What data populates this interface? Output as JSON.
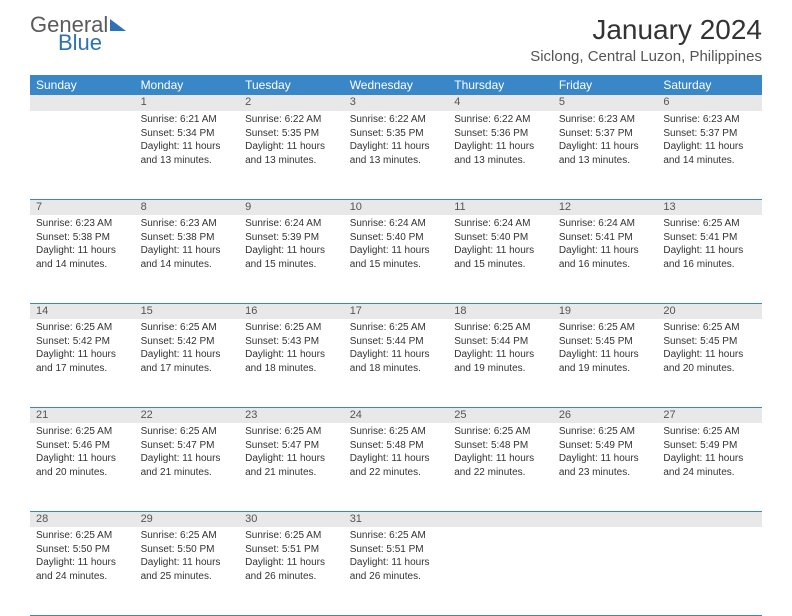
{
  "brand": {
    "part1": "General",
    "part2": "Blue"
  },
  "title": "January 2024",
  "location": "Siclong, Central Luzon, Philippines",
  "colors": {
    "header_bg": "#3a87c8",
    "header_text": "#ffffff",
    "daynum_bg": "#e8e8e8",
    "border": "#3a87c8",
    "text": "#333333",
    "brand_gray": "#5b5b5b",
    "brand_blue": "#2d72b5"
  },
  "day_headers": [
    "Sunday",
    "Monday",
    "Tuesday",
    "Wednesday",
    "Thursday",
    "Friday",
    "Saturday"
  ],
  "weeks": [
    [
      {
        "n": "",
        "sr": "",
        "ss": "",
        "dl": ""
      },
      {
        "n": "1",
        "sr": "Sunrise: 6:21 AM",
        "ss": "Sunset: 5:34 PM",
        "dl": "Daylight: 11 hours and 13 minutes."
      },
      {
        "n": "2",
        "sr": "Sunrise: 6:22 AM",
        "ss": "Sunset: 5:35 PM",
        "dl": "Daylight: 11 hours and 13 minutes."
      },
      {
        "n": "3",
        "sr": "Sunrise: 6:22 AM",
        "ss": "Sunset: 5:35 PM",
        "dl": "Daylight: 11 hours and 13 minutes."
      },
      {
        "n": "4",
        "sr": "Sunrise: 6:22 AM",
        "ss": "Sunset: 5:36 PM",
        "dl": "Daylight: 11 hours and 13 minutes."
      },
      {
        "n": "5",
        "sr": "Sunrise: 6:23 AM",
        "ss": "Sunset: 5:37 PM",
        "dl": "Daylight: 11 hours and 13 minutes."
      },
      {
        "n": "6",
        "sr": "Sunrise: 6:23 AM",
        "ss": "Sunset: 5:37 PM",
        "dl": "Daylight: 11 hours and 14 minutes."
      }
    ],
    [
      {
        "n": "7",
        "sr": "Sunrise: 6:23 AM",
        "ss": "Sunset: 5:38 PM",
        "dl": "Daylight: 11 hours and 14 minutes."
      },
      {
        "n": "8",
        "sr": "Sunrise: 6:23 AM",
        "ss": "Sunset: 5:38 PM",
        "dl": "Daylight: 11 hours and 14 minutes."
      },
      {
        "n": "9",
        "sr": "Sunrise: 6:24 AM",
        "ss": "Sunset: 5:39 PM",
        "dl": "Daylight: 11 hours and 15 minutes."
      },
      {
        "n": "10",
        "sr": "Sunrise: 6:24 AM",
        "ss": "Sunset: 5:40 PM",
        "dl": "Daylight: 11 hours and 15 minutes."
      },
      {
        "n": "11",
        "sr": "Sunrise: 6:24 AM",
        "ss": "Sunset: 5:40 PM",
        "dl": "Daylight: 11 hours and 15 minutes."
      },
      {
        "n": "12",
        "sr": "Sunrise: 6:24 AM",
        "ss": "Sunset: 5:41 PM",
        "dl": "Daylight: 11 hours and 16 minutes."
      },
      {
        "n": "13",
        "sr": "Sunrise: 6:25 AM",
        "ss": "Sunset: 5:41 PM",
        "dl": "Daylight: 11 hours and 16 minutes."
      }
    ],
    [
      {
        "n": "14",
        "sr": "Sunrise: 6:25 AM",
        "ss": "Sunset: 5:42 PM",
        "dl": "Daylight: 11 hours and 17 minutes."
      },
      {
        "n": "15",
        "sr": "Sunrise: 6:25 AM",
        "ss": "Sunset: 5:42 PM",
        "dl": "Daylight: 11 hours and 17 minutes."
      },
      {
        "n": "16",
        "sr": "Sunrise: 6:25 AM",
        "ss": "Sunset: 5:43 PM",
        "dl": "Daylight: 11 hours and 18 minutes."
      },
      {
        "n": "17",
        "sr": "Sunrise: 6:25 AM",
        "ss": "Sunset: 5:44 PM",
        "dl": "Daylight: 11 hours and 18 minutes."
      },
      {
        "n": "18",
        "sr": "Sunrise: 6:25 AM",
        "ss": "Sunset: 5:44 PM",
        "dl": "Daylight: 11 hours and 19 minutes."
      },
      {
        "n": "19",
        "sr": "Sunrise: 6:25 AM",
        "ss": "Sunset: 5:45 PM",
        "dl": "Daylight: 11 hours and 19 minutes."
      },
      {
        "n": "20",
        "sr": "Sunrise: 6:25 AM",
        "ss": "Sunset: 5:45 PM",
        "dl": "Daylight: 11 hours and 20 minutes."
      }
    ],
    [
      {
        "n": "21",
        "sr": "Sunrise: 6:25 AM",
        "ss": "Sunset: 5:46 PM",
        "dl": "Daylight: 11 hours and 20 minutes."
      },
      {
        "n": "22",
        "sr": "Sunrise: 6:25 AM",
        "ss": "Sunset: 5:47 PM",
        "dl": "Daylight: 11 hours and 21 minutes."
      },
      {
        "n": "23",
        "sr": "Sunrise: 6:25 AM",
        "ss": "Sunset: 5:47 PM",
        "dl": "Daylight: 11 hours and 21 minutes."
      },
      {
        "n": "24",
        "sr": "Sunrise: 6:25 AM",
        "ss": "Sunset: 5:48 PM",
        "dl": "Daylight: 11 hours and 22 minutes."
      },
      {
        "n": "25",
        "sr": "Sunrise: 6:25 AM",
        "ss": "Sunset: 5:48 PM",
        "dl": "Daylight: 11 hours and 22 minutes."
      },
      {
        "n": "26",
        "sr": "Sunrise: 6:25 AM",
        "ss": "Sunset: 5:49 PM",
        "dl": "Daylight: 11 hours and 23 minutes."
      },
      {
        "n": "27",
        "sr": "Sunrise: 6:25 AM",
        "ss": "Sunset: 5:49 PM",
        "dl": "Daylight: 11 hours and 24 minutes."
      }
    ],
    [
      {
        "n": "28",
        "sr": "Sunrise: 6:25 AM",
        "ss": "Sunset: 5:50 PM",
        "dl": "Daylight: 11 hours and 24 minutes."
      },
      {
        "n": "29",
        "sr": "Sunrise: 6:25 AM",
        "ss": "Sunset: 5:50 PM",
        "dl": "Daylight: 11 hours and 25 minutes."
      },
      {
        "n": "30",
        "sr": "Sunrise: 6:25 AM",
        "ss": "Sunset: 5:51 PM",
        "dl": "Daylight: 11 hours and 26 minutes."
      },
      {
        "n": "31",
        "sr": "Sunrise: 6:25 AM",
        "ss": "Sunset: 5:51 PM",
        "dl": "Daylight: 11 hours and 26 minutes."
      },
      {
        "n": "",
        "sr": "",
        "ss": "",
        "dl": ""
      },
      {
        "n": "",
        "sr": "",
        "ss": "",
        "dl": ""
      },
      {
        "n": "",
        "sr": "",
        "ss": "",
        "dl": ""
      }
    ]
  ]
}
